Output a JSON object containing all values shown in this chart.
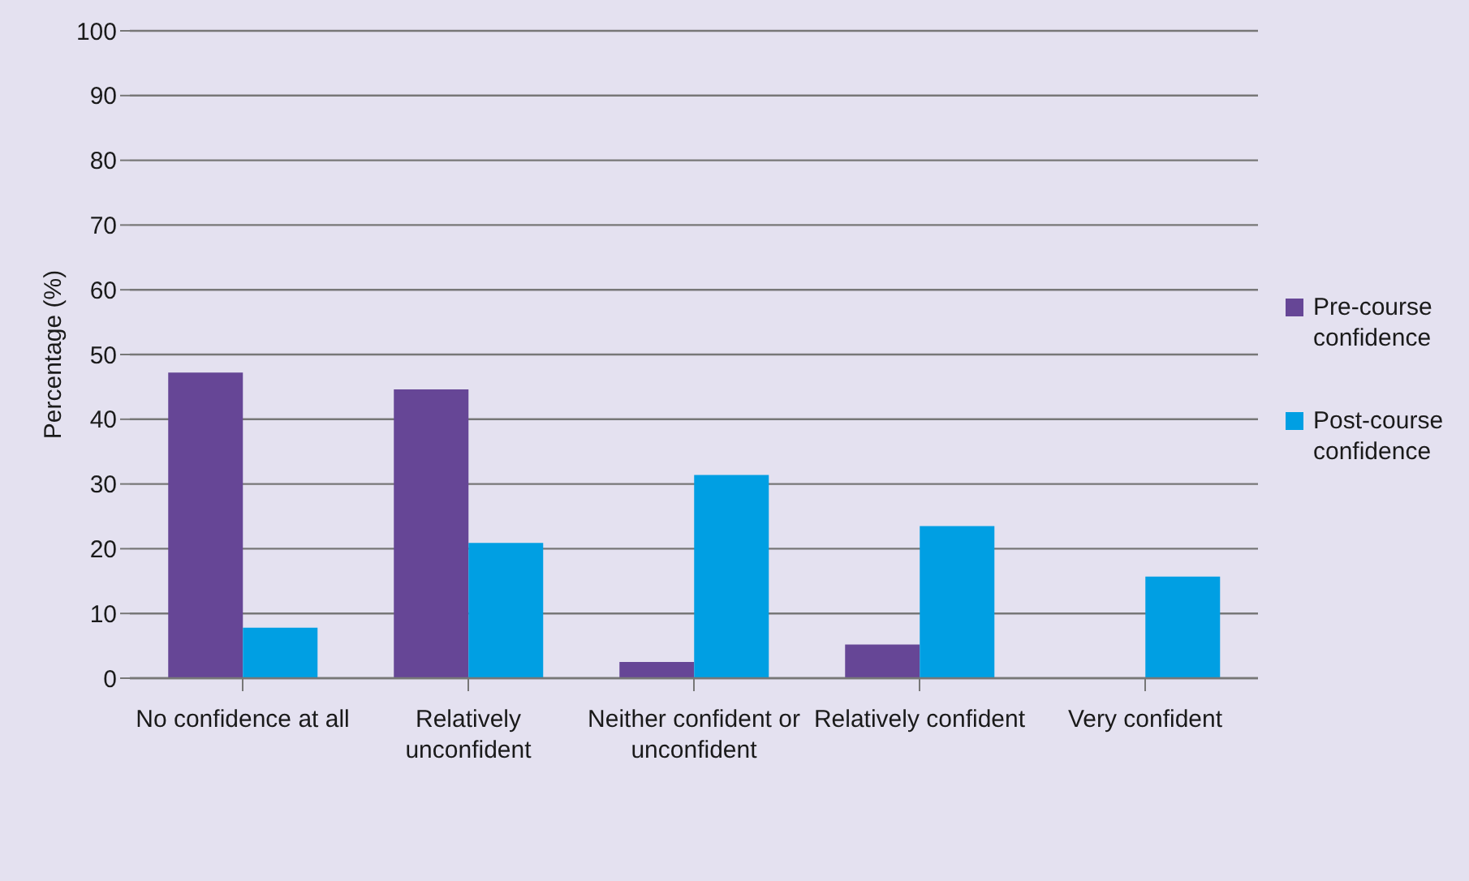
{
  "chart_data": {
    "type": "bar",
    "ylabel": "Percentage (%)",
    "categories": [
      "No confidence at all",
      "Relatively unconfident",
      "Neither confident or unconfident",
      "Relatively confident",
      "Very confident"
    ],
    "series": [
      {
        "name": "Pre-course confidence",
        "color": "#664696",
        "values": [
          47.2,
          44.6,
          2.5,
          5.2,
          0
        ]
      },
      {
        "name": "Post-course confidence",
        "color": "#009fe3",
        "values": [
          7.8,
          20.9,
          31.4,
          23.5,
          15.7
        ]
      }
    ],
    "ylim": [
      0,
      100
    ],
    "yticks": [
      0,
      10,
      20,
      30,
      40,
      50,
      60,
      70,
      80,
      90,
      100
    ],
    "grid": "y",
    "legend": "right"
  }
}
